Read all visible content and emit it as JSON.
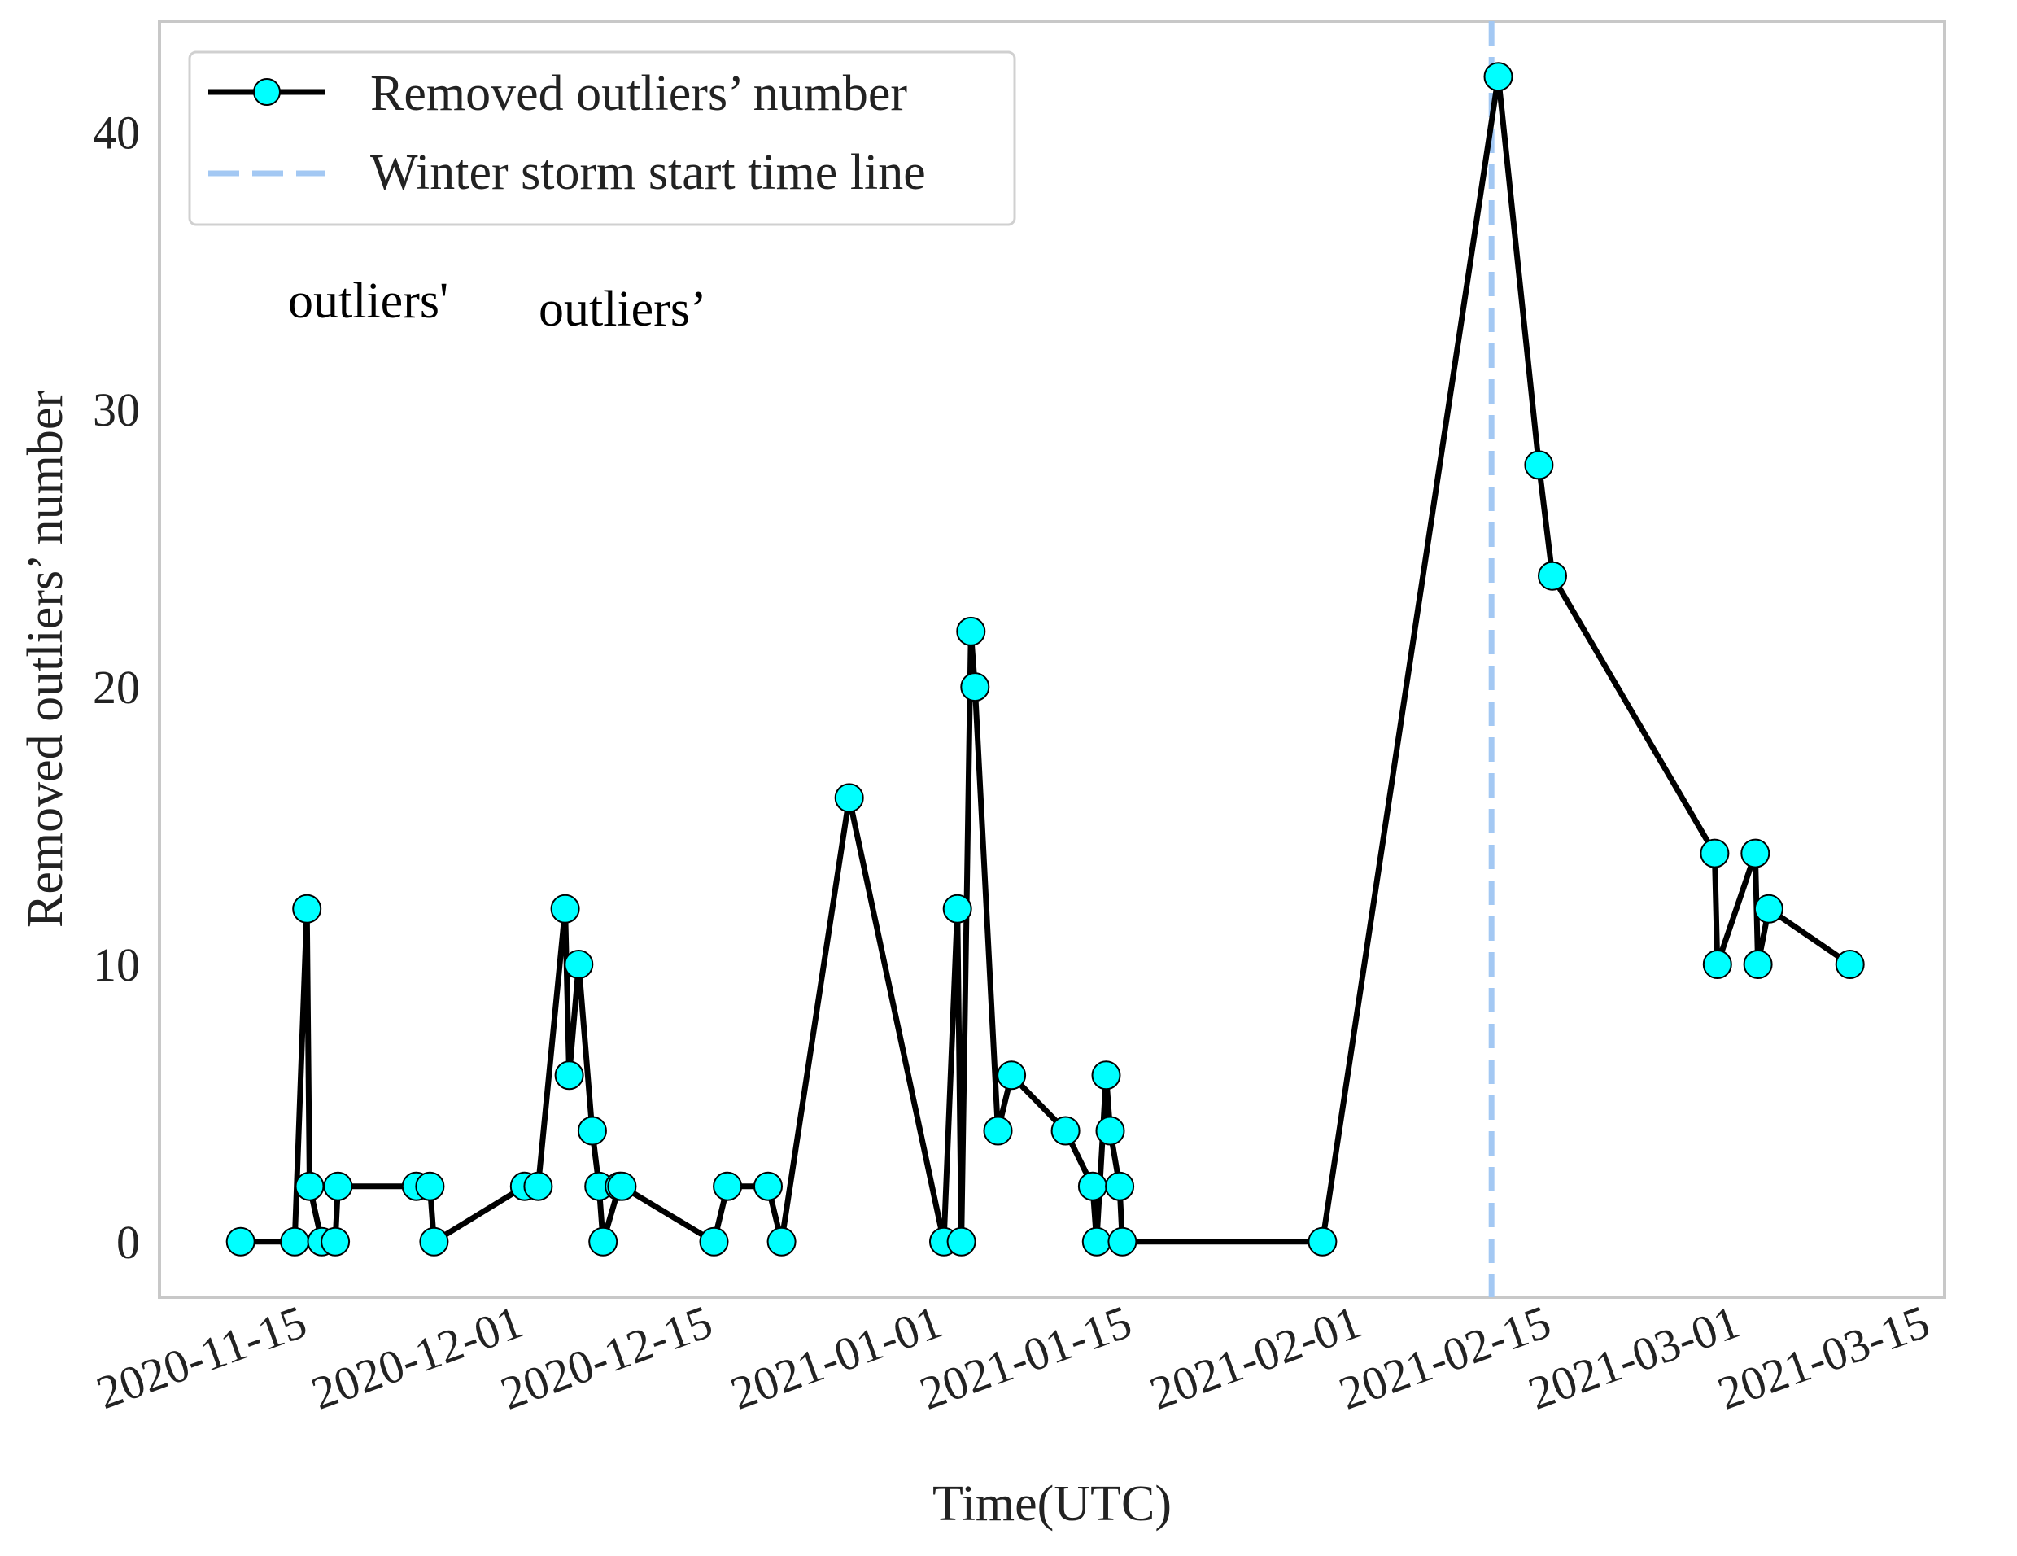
{
  "chart_data": {
    "type": "line",
    "title": "",
    "xlabel": "Time(UTC)",
    "ylabel": "Removed outliers’ number",
    "ylim": [
      -2,
      44
    ],
    "xlim": [
      "2020-11-03",
      "2021-03-15"
    ],
    "grid": false,
    "legend_position": "top-left",
    "x_ticks": [
      "2020-11-15",
      "2020-12-01",
      "2020-12-15",
      "2021-01-01",
      "2021-01-15",
      "2021-02-01",
      "2021-02-15",
      "2021-03-01",
      "2021-03-15"
    ],
    "y_ticks": [
      0,
      10,
      20,
      30,
      40
    ],
    "series": [
      {
        "name": "Removed outliers’ number",
        "color": "#000000",
        "marker_color": "#00ffff",
        "x": [
          "2020-11-09",
          "2020-11-13",
          "2020-11-13.9",
          "2020-11-14.1",
          "2020-11-15",
          "2020-11-16",
          "2020-11-16.2",
          "2020-11-22",
          "2020-11-23",
          "2020-11-23.3",
          "2020-11-30",
          "2020-12-01",
          "2020-12-03",
          "2020-12-03.3",
          "2020-12-04",
          "2020-12-05",
          "2020-12-05.5",
          "2020-12-05.8",
          "2020-12-07",
          "2020-12-07.2",
          "2020-12-14",
          "2020-12-15",
          "2020-12-18",
          "2020-12-19",
          "2020-12-24",
          "2020-12-31",
          "2021-01-01",
          "2021-01-01.3",
          "2021-01-02",
          "2021-01-02.3",
          "2021-01-04",
          "2021-01-05",
          "2021-01-09",
          "2021-01-11",
          "2021-01-11.3",
          "2021-01-12",
          "2021-01-12.3",
          "2021-01-13",
          "2021-01-13.2",
          "2021-01-28",
          "2021-02-10",
          "2021-02-13",
          "2021-02-14",
          "2021-02-26",
          "2021-02-26.2",
          "2021-03-01",
          "2021-03-01.2",
          "2021-03-02",
          "2021-03-08"
        ],
        "y": [
          0,
          0,
          12,
          2,
          0,
          0,
          2,
          2,
          2,
          0,
          2,
          2,
          12,
          6,
          10,
          4,
          2,
          0,
          2,
          2,
          0,
          2,
          2,
          0,
          16,
          0,
          12,
          0,
          22,
          20,
          4,
          6,
          4,
          2,
          0,
          6,
          4,
          2,
          0,
          0,
          42,
          28,
          24,
          14,
          10,
          14,
          10,
          12,
          10
        ]
      },
      {
        "name": "Winter storm start time line",
        "color": "#a3c8f3",
        "style": "dashed",
        "x_value": "2021-02-09.5"
      }
    ],
    "annotations": [
      "outliers'",
      "outliers’"
    ]
  }
}
